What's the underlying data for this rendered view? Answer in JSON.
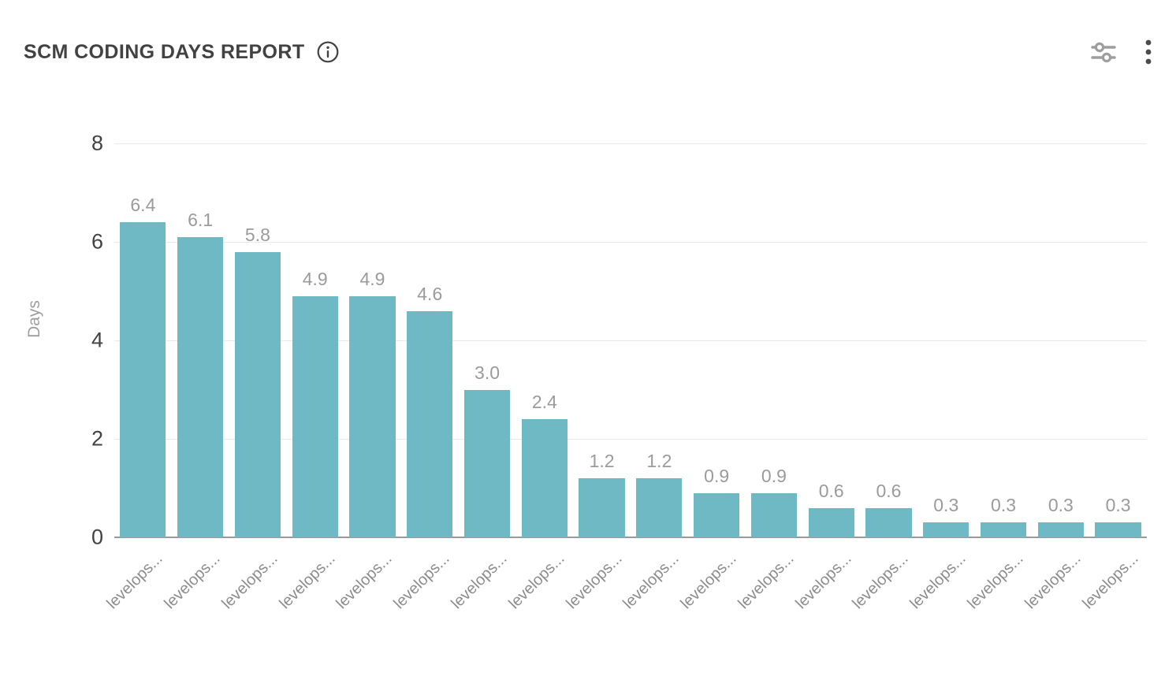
{
  "header": {
    "title": "SCM CODING DAYS REPORT"
  },
  "chart_data": {
    "type": "bar",
    "title": "SCM CODING DAYS REPORT",
    "xlabel": "",
    "ylabel": "Days",
    "ylim": [
      0,
      8
    ],
    "yticks": [
      0,
      2,
      4,
      6,
      8
    ],
    "grid": true,
    "legend": false,
    "categories": [
      "levelops...",
      "levelops...",
      "levelops...",
      "levelops...",
      "levelops...",
      "levelops...",
      "levelops...",
      "levelops...",
      "levelops...",
      "levelops...",
      "levelops...",
      "levelops...",
      "levelops...",
      "levelops...",
      "levelops...",
      "levelops...",
      "levelops...",
      "levelops..."
    ],
    "values": [
      6.4,
      6.1,
      5.8,
      4.9,
      4.9,
      4.6,
      3.0,
      2.4,
      1.2,
      1.2,
      0.9,
      0.9,
      0.6,
      0.6,
      0.3,
      0.3,
      0.3,
      0.3
    ],
    "value_label_decimals": 1
  },
  "theme": {
    "bar_color": "#6fb9c4",
    "grid_color": "#e9e9e9",
    "axis_line_color": "#9a9a9a",
    "tick_text_color": "#424242",
    "muted_text_color": "#9b9b9b",
    "title_color": "#424242",
    "icon_gray": "#9e9e9e",
    "icon_dark": "#4a4a4a"
  }
}
